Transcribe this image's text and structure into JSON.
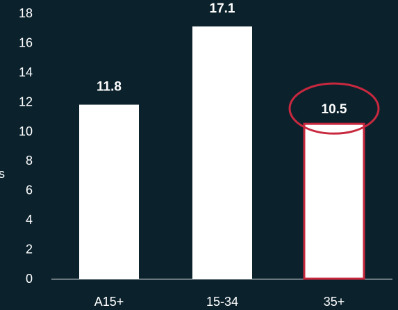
{
  "chart_data": {
    "type": "bar",
    "categories": [
      "A15+",
      "15-34",
      "35+"
    ],
    "values": [
      11.8,
      17.1,
      10.5
    ],
    "data_labels": [
      "11.8",
      "17.1",
      "10.5"
    ],
    "ylim": [
      0,
      18
    ],
    "yticks": [
      0,
      2,
      4,
      6,
      8,
      10,
      12,
      14,
      16,
      18
    ],
    "ytick_labels": [
      "0",
      "2",
      "4",
      "6",
      "8",
      "10",
      "12",
      "14",
      "16",
      "18"
    ],
    "ylabel": "s",
    "xlabel": "",
    "title": "",
    "grid": false,
    "highlight": {
      "category": "35+",
      "style": "outlined bar with circled value"
    },
    "colors": {
      "background": "#0b222d",
      "bar": "#ffffff",
      "text": "#ffffff",
      "highlight": "#c8283e",
      "axis": "#ffffff"
    }
  }
}
